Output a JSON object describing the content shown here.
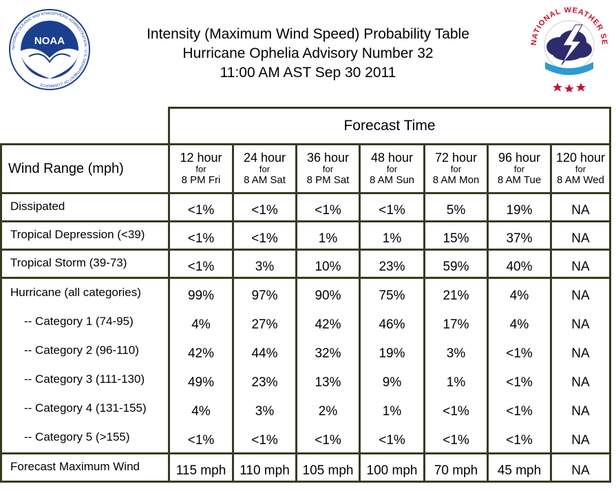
{
  "header": {
    "title_line1": "Intensity (Maximum Wind Speed) Probability Table",
    "title_line2": "Hurricane Ophelia Advisory Number 32",
    "title_line3": "11:00 AM AST Sep 30 2011",
    "noaa_logo_text": "NOAA",
    "noaa_ring_text": "NATIONAL OCEANIC AND ATMOSPHERIC ADMINISTRATION · U.S. DEPARTMENT OF COMMERCE",
    "nws_ring_text": "NATIONAL WEATHER SERVICE"
  },
  "table": {
    "forecast_time_label": "Forecast Time",
    "wind_range_label": "Wind Range (mph)",
    "columns": [
      {
        "hour": "12 hour",
        "for": "for",
        "when": "8 PM Fri"
      },
      {
        "hour": "24 hour",
        "for": "for",
        "when": "8 AM Sat"
      },
      {
        "hour": "36 hour",
        "for": "for",
        "when": "8 PM Sat"
      },
      {
        "hour": "48 hour",
        "for": "for",
        "when": "8 AM Sun"
      },
      {
        "hour": "72 hour",
        "for": "for",
        "when": "8 AM Mon"
      },
      {
        "hour": "96 hour",
        "for": "for",
        "when": "8 AM Tue"
      },
      {
        "hour": "120 hour",
        "for": "for",
        "when": "8 AM Wed"
      }
    ],
    "rows": {
      "dissipated": {
        "label": "Dissipated",
        "values": [
          "<1%",
          "<1%",
          "<1%",
          "<1%",
          "5%",
          "19%",
          "NA"
        ]
      },
      "td": {
        "label": "Tropical Depression (<39)",
        "values": [
          "<1%",
          "<1%",
          "1%",
          "1%",
          "15%",
          "37%",
          "NA"
        ]
      },
      "ts": {
        "label": "Tropical Storm (39-73)",
        "values": [
          "<1%",
          "3%",
          "10%",
          "23%",
          "59%",
          "40%",
          "NA"
        ]
      },
      "hurricane": [
        {
          "label": "Hurricane (all categories)",
          "values": [
            "99%",
            "97%",
            "90%",
            "75%",
            "21%",
            "4%",
            "NA"
          ]
        },
        {
          "label": "-- Category 1 (74-95)",
          "values": [
            "4%",
            "27%",
            "42%",
            "46%",
            "17%",
            "4%",
            "NA"
          ]
        },
        {
          "label": "-- Category 2 (96-110)",
          "values": [
            "42%",
            "44%",
            "32%",
            "19%",
            "3%",
            "<1%",
            "NA"
          ]
        },
        {
          "label": "-- Category 3 (111-130)",
          "values": [
            "49%",
            "23%",
            "13%",
            "9%",
            "1%",
            "<1%",
            "NA"
          ]
        },
        {
          "label": "-- Category 4 (131-155)",
          "values": [
            "4%",
            "3%",
            "2%",
            "1%",
            "<1%",
            "<1%",
            "NA"
          ]
        },
        {
          "label": "-- Category 5 (>155)",
          "values": [
            "<1%",
            "<1%",
            "<1%",
            "<1%",
            "<1%",
            "<1%",
            "NA"
          ]
        }
      ],
      "max_wind": {
        "label": "Forecast Maximum Wind",
        "values": [
          "115 mph",
          "110 mph",
          "105 mph",
          "100 mph",
          "70 mph",
          "45 mph",
          "NA"
        ]
      }
    }
  },
  "colors": {
    "border": "#3a3a1e",
    "noaa_blue": "#1b3f8f",
    "nws_red": "#c8102e"
  }
}
